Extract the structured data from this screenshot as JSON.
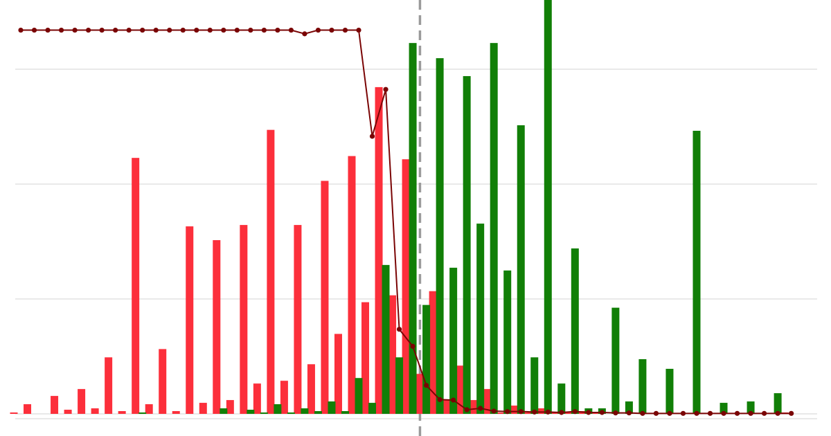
{
  "chart_data": {
    "type": "bar",
    "title": "",
    "xlabel": "",
    "ylabel": "",
    "grid": true,
    "legend": "none",
    "ylim": [
      0,
      100
    ],
    "y_gridlines": [
      0,
      25,
      50,
      75
    ],
    "x_count": 58,
    "divider_x": 29.5,
    "colors": {
      "red_bars": "#fc2f3b",
      "green_bars": "#117f07",
      "line": "#7a0404",
      "grid": "#e2e2e2",
      "divider": "#9a9a9a"
    },
    "series": [
      {
        "kind": "bar",
        "color_key": "red_bars",
        "values": [
          0.3,
          2.1,
          0,
          3.9,
          0.9,
          5.4,
          1.2,
          12.3,
          0.6,
          55.7,
          2.1,
          14.1,
          0.6,
          40.8,
          2.4,
          37.8,
          3,
          41.1,
          6.6,
          61.8,
          7.2,
          41.1,
          10.8,
          50.7,
          17.4,
          56.1,
          24.3,
          71.1,
          25.8,
          55.4,
          8.7,
          26.7,
          3,
          10.5,
          3,
          5.4,
          0.3,
          1.8,
          0.3,
          1.2,
          0.3,
          0.3,
          0.6,
          0.3,
          0,
          0,
          0,
          0,
          0,
          0,
          0,
          0,
          0,
          0,
          0,
          0,
          0,
          0.3
        ]
      },
      {
        "kind": "bar",
        "color_key": "green_bars",
        "values": [
          0,
          0,
          0,
          0,
          0,
          0,
          0,
          0,
          0,
          0.3,
          0,
          0,
          0,
          0,
          0,
          1.2,
          0,
          0.9,
          0.3,
          2.1,
          0.3,
          1.2,
          0.6,
          2.7,
          0.6,
          7.8,
          2.4,
          32.4,
          12.3,
          80.7,
          23.7,
          77.4,
          31.8,
          73.5,
          41.4,
          80.7,
          31.2,
          62.8,
          12.3,
          90.3,
          6.6,
          36,
          1.2,
          1.2,
          23.1,
          2.7,
          11.9,
          0,
          9.8,
          0,
          61.6,
          0,
          2.4,
          0,
          2.7,
          0,
          4.5,
          0
        ]
      },
      {
        "kind": "line",
        "color_key": "line",
        "values": [
          83.5,
          83.5,
          83.5,
          83.5,
          83.5,
          83.5,
          83.5,
          83.5,
          83.5,
          83.5,
          83.5,
          83.5,
          83.5,
          83.5,
          83.5,
          83.5,
          83.5,
          83.5,
          83.5,
          83.5,
          83.5,
          82.7,
          83.5,
          83.5,
          83.5,
          83.5,
          60.4,
          70.6,
          18.4,
          14.7,
          6.2,
          3.1,
          3,
          0.9,
          1.2,
          0.6,
          0.5,
          0.5,
          0.4,
          0.4,
          0.3,
          0.5,
          0.3,
          0.3,
          0.2,
          0.2,
          0.1,
          0.1,
          0.1,
          0.1,
          0.1,
          0.1,
          0.1,
          0.1,
          0.1,
          0.1,
          0.1,
          0.1
        ]
      }
    ]
  }
}
